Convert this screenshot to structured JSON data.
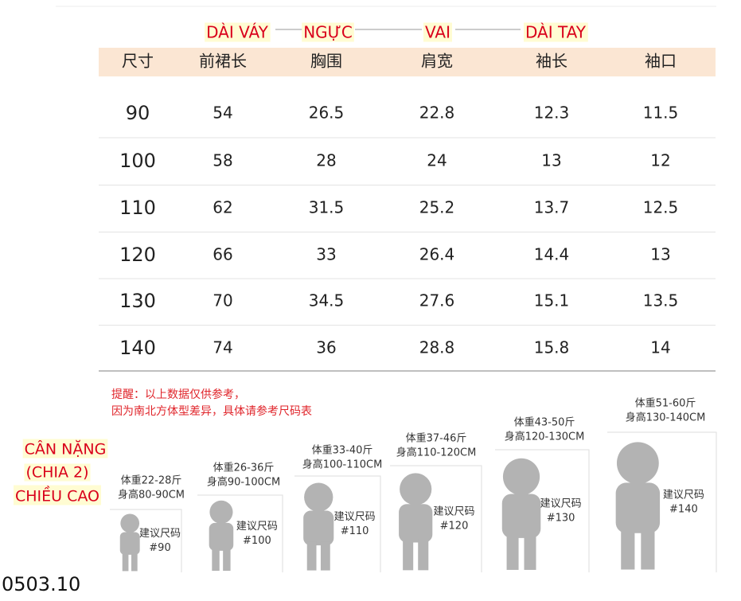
{
  "annotations": [
    "DÀI VÁY",
    "NGỰC",
    "VAI",
    "DÀI TAY"
  ],
  "table": {
    "header": [
      "尺寸",
      "前裙长",
      "胸围",
      "肩宽",
      "袖长",
      "袖口"
    ],
    "rows": [
      [
        90,
        54,
        26.5,
        22.8,
        12.3,
        11.5
      ],
      [
        100,
        58,
        28,
        24,
        13,
        12
      ],
      [
        110,
        62,
        31.5,
        25.2,
        13.7,
        12.5
      ],
      [
        120,
        66,
        33,
        26.4,
        14.4,
        13
      ],
      [
        130,
        70,
        34.5,
        27.6,
        15.1,
        13.5
      ],
      [
        140,
        74,
        36,
        28.8,
        15.8,
        14
      ]
    ]
  },
  "notes": [
    "提醒：以上数据仅供参考，",
    "因为南北方体型差异，具体请参考尺码表"
  ],
  "cards": [
    {
      "weight": "体重22-28斤",
      "height": "身高80-90CM",
      "label": "建议尺码",
      "size": "#90"
    },
    {
      "weight": "体重26-36斤",
      "height": "身高90-100CM",
      "label": "建议尺码",
      "size": "#100"
    },
    {
      "weight": "体重33-40斤",
      "height": "身高100-110CM",
      "label": "建议尺码",
      "size": "#110"
    },
    {
      "weight": "体重37-46斤",
      "height": "身高110-120CM",
      "label": "建议尺码",
      "size": "#120"
    },
    {
      "weight": "体重43-50斤",
      "height": "身高120-130CM",
      "label": "建议尺码",
      "size": "#130"
    },
    {
      "weight": "体重51-60斤",
      "height": "身高130-140CM",
      "label": "建议尺码",
      "size": "#140"
    }
  ],
  "side_labels": [
    "CÂN NẶNG",
    "(CHIA 2)",
    "CHIỀU CAO"
  ],
  "code": "0503.10"
}
